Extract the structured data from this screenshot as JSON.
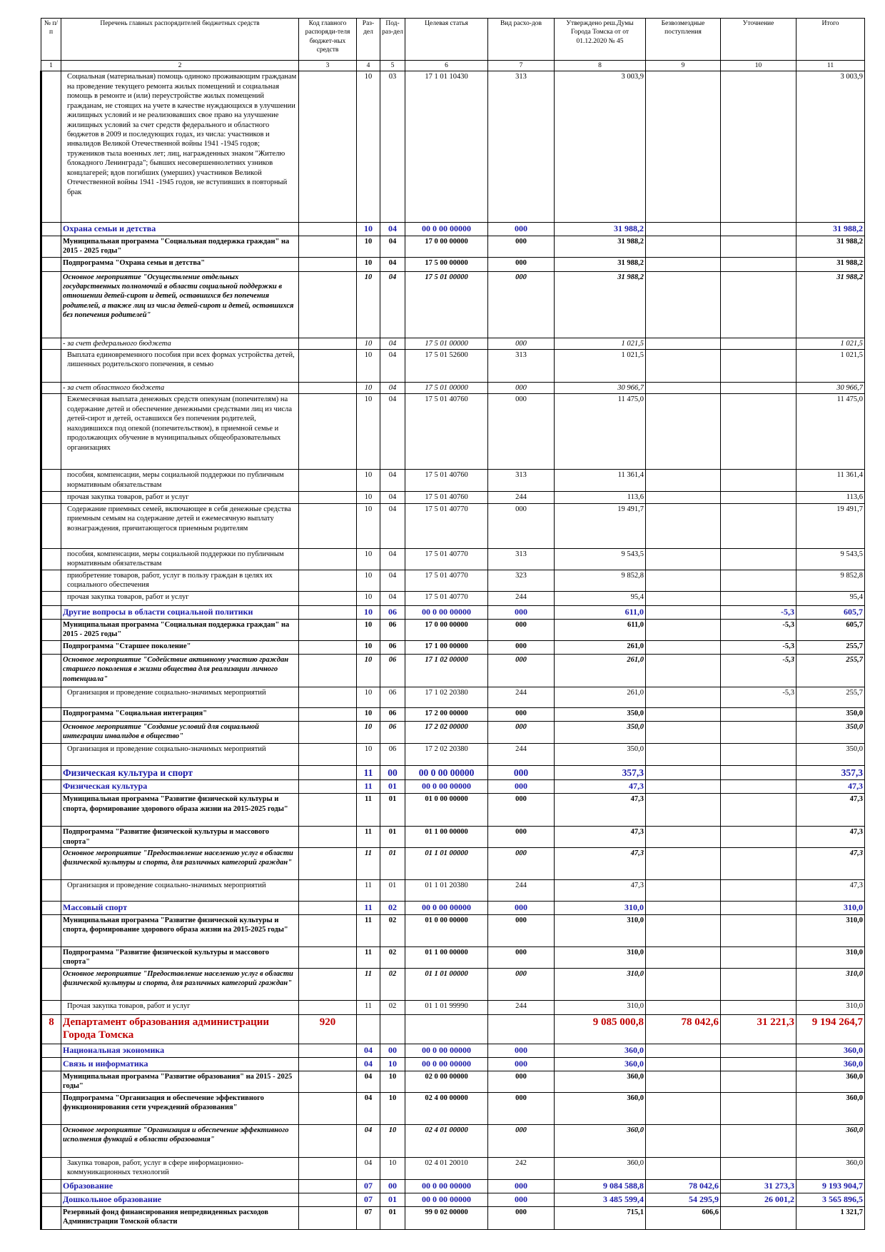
{
  "header": {
    "columns": [
      "№ п/п",
      "Перечень главных распорядителей бюджетных средств",
      "Код главного распоряди-теля бюджет-ных средств",
      "Раз-дел",
      "Под-раз-дел",
      "Целевая статья",
      "Вид расхо-дов",
      "Утверждено реш.Думы Города Томска от от 01.12.2020 № 45",
      "Безвозмездные поступления",
      "Уточнение",
      "Итого"
    ],
    "numbers": [
      1,
      2,
      3,
      4,
      5,
      6,
      7,
      8,
      9,
      10,
      11
    ]
  },
  "table": {
    "rows": [
      {
        "name": "Социальная (материальная) помощь одиноко проживающим гражданам на проведение текущего ремонта жилых помещений и социальная помощь в ремонте и (или) переустройстве жилых помещений гражданам, не стоящих на учете в качестве нуждающихся в улучшении жилищных условий и не реализовавших свое право на улучшение жилищных условий за счет средств федерального и областного бюджетов в 2009 и последующих годах, из числа: участников и инвалидов Великой Отечественной войны 1941 -1945 годов; тружеников тыла военных лет; лиц, награжденных знаком \"Жителю блокадного Ленинграда\"; бывших несовершеннолетних узников концлагерей; вдов погибших (умерших) участников Великой Отечественной войны 1941 -1945 годов, не вступивших в повторный брак",
        "sec": "10",
        "sub": "03",
        "target": "17 1 01 10430",
        "exp": "313",
        "approved": "3 003,9",
        "total": "3 003,9"
      },
      {
        "name": "Охрана семьи и детства",
        "sec": "10",
        "sub": "04",
        "target": "00 0 00 00000",
        "exp": "000",
        "approved": "31 988,2",
        "total": "31 988,2"
      },
      {
        "name": "Муниципальная программа \"Социальная поддержка граждан\" на 2015 - 2025 годы\"",
        "sec": "10",
        "sub": "04",
        "target": "17 0 00 00000",
        "exp": "000",
        "approved": "31 988,2",
        "total": "31 988,2"
      },
      {
        "name": "Подпрограмма \"Охрана семьи и детства\"",
        "sec": "10",
        "sub": "04",
        "target": "17 5 00 00000",
        "exp": "000",
        "approved": "31 988,2",
        "total": "31 988,2"
      },
      {
        "name": "Основное мероприятие \"Осуществление отдельных государственных полномочий в области социальной поддержки в отношении детей-сирот и детей, оставшихся без попечения родителей, а также лиц из числа детей-сирот и детей, оставшихся без попечения родителей\"",
        "sec": "10",
        "sub": "04",
        "target": "17 5 01 00000",
        "exp": "000",
        "approved": "31 988,2",
        "total": "31 988,2"
      },
      {
        "name": "- за счет федерального бюджета",
        "sec": "10",
        "sub": "04",
        "target": "17 5 01 00000",
        "exp": "000",
        "approved": "1 021,5",
        "total": "1 021,5"
      },
      {
        "name": "Выплата единовременного пособия при всех формах устройства детей, лишенных родительского попечения, в семью",
        "sec": "10",
        "sub": "04",
        "target": "17 5 01 52600",
        "exp": "313",
        "approved": "1 021,5",
        "total": "1 021,5"
      },
      {
        "name": "- за счет областного бюджета",
        "sec": "10",
        "sub": "04",
        "target": "17 5 01 00000",
        "exp": "000",
        "approved": "30 966,7",
        "total": "30 966,7"
      },
      {
        "name": "Ежемесячная выплата денежных средств опекунам (попечителям) на содержание детей и обеспечение денежными средствами лиц из числа детей-сирот и детей, оставшихся без попечения родителей, находившихся под опекой (попечительством), в приемной семье и продолжающих обучение в муниципальных общеобразовательных организациях",
        "sec": "10",
        "sub": "04",
        "target": "17 5 01 40760",
        "exp": "000",
        "approved": "11 475,0",
        "total": "11 475,0"
      },
      {
        "name": "пособия, компенсации, меры социальной поддержки по публичным нормативным обязательствам",
        "sec": "10",
        "sub": "04",
        "target": "17 5 01 40760",
        "exp": "313",
        "approved": "11 361,4",
        "total": "11 361,4"
      },
      {
        "name": "прочая закупка товаров, работ и услуг",
        "sec": "10",
        "sub": "04",
        "target": "17 5 01 40760",
        "exp": "244",
        "approved": "113,6",
        "total": "113,6"
      },
      {
        "name": "Содержание приемных семей, включающее в себя денежные средства приемным семьям на содержание детей и ежемесячную выплату вознаграждения, причитающегося приемным родителям",
        "sec": "10",
        "sub": "04",
        "target": "17 5 01 40770",
        "exp": "000",
        "approved": "19 491,7",
        "total": "19 491,7"
      },
      {
        "name": "пособия, компенсации, меры социальной поддержки по публичным нормативным обязательствам",
        "sec": "10",
        "sub": "04",
        "target": "17 5 01 40770",
        "exp": "313",
        "approved": "9 543,5",
        "total": "9 543,5"
      },
      {
        "name": "приобретение товаров, работ, услуг в пользу граждан в целях их социального обеспечения",
        "sec": "10",
        "sub": "04",
        "target": "17 5 01 40770",
        "exp": "323",
        "approved": "9 852,8",
        "total": "9 852,8"
      },
      {
        "name": "прочая закупка товаров, работ и услуг",
        "sec": "10",
        "sub": "04",
        "target": "17 5 01 40770",
        "exp": "244",
        "approved": "95,4",
        "total": "95,4"
      },
      {
        "name": "Другие вопросы в области социальной политики",
        "sec": "10",
        "sub": "06",
        "target": "00 0 00 00000",
        "exp": "000",
        "approved": "611,0",
        "adjust": "-5,3",
        "total": "605,7"
      },
      {
        "name": "Муниципальная программа \"Социальная поддержка граждан\" на 2015 - 2025 годы\"",
        "sec": "10",
        "sub": "06",
        "target": "17 0 00 00000",
        "exp": "000",
        "approved": "611,0",
        "adjust": "-5,3",
        "total": "605,7"
      },
      {
        "name": "Подпрограмма \"Старшее поколение\"",
        "sec": "10",
        "sub": "06",
        "target": "17 1 00 00000",
        "exp": "000",
        "approved": "261,0",
        "adjust": "-5,3",
        "total": "255,7"
      },
      {
        "name": "Основное мероприятие \"Содействие активному участию граждан старшего поколения в жизни общества для реализации личного потенциала\"",
        "sec": "10",
        "sub": "06",
        "target": "17 1 02 00000",
        "exp": "000",
        "approved": "261,0",
        "adjust": "-5,3",
        "total": "255,7"
      },
      {
        "name": "Организация и проведение социально-значимых мероприятий",
        "sec": "10",
        "sub": "06",
        "target": "17 1 02 20380",
        "exp": "244",
        "approved": "261,0",
        "adjust": "-5,3",
        "total": "255,7"
      },
      {
        "name": "Подпрограмма \"Социальная интеграция\"",
        "sec": "10",
        "sub": "06",
        "target": "17 2 00 00000",
        "exp": "000",
        "approved": "350,0",
        "total": "350,0"
      },
      {
        "name": "Основное мероприятие \"Создание условий для социальной интеграции инвалидов в общество\"",
        "sec": "10",
        "sub": "06",
        "target": "17 2 02 00000",
        "exp": "000",
        "approved": "350,0",
        "total": "350,0"
      },
      {
        "name": "Организация и проведение социально-значимых мероприятий",
        "sec": "10",
        "sub": "06",
        "target": "17 2 02 20380",
        "exp": "244",
        "approved": "350,0",
        "total": "350,0"
      },
      {
        "name": "Физическая культура и спорт",
        "sec": "11",
        "sub": "00",
        "target": "00 0 00 00000",
        "exp": "000",
        "approved": "357,3",
        "total": "357,3"
      },
      {
        "name": "Физическая культура",
        "sec": "11",
        "sub": "01",
        "target": "00 0 00 00000",
        "exp": "000",
        "approved": "47,3",
        "total": "47,3"
      },
      {
        "name": "Муниципальная программа \"Развитие физической культуры и спорта, формирование здорового образа жизни на 2015-2025 годы\"",
        "sec": "11",
        "sub": "01",
        "target": "01 0 00 00000",
        "exp": "000",
        "approved": "47,3",
        "total": "47,3"
      },
      {
        "name": "Подпрограмма \"Развитие физической культуры и массового спорта\"",
        "sec": "11",
        "sub": "01",
        "target": "01 1 00 00000",
        "exp": "000",
        "approved": "47,3",
        "total": "47,3"
      },
      {
        "name": "Основное мероприятие \"Предоставление населению услуг в области физической культуры и спорта, для различных категорий граждан\"",
        "sec": "11",
        "sub": "01",
        "target": "01 1 01 00000",
        "exp": "000",
        "approved": "47,3",
        "total": "47,3"
      },
      {
        "name": "Организация и проведение социально-значимых мероприятий",
        "sec": "11",
        "sub": "01",
        "target": "01 1 01 20380",
        "exp": "244",
        "approved": "47,3",
        "total": "47,3"
      },
      {
        "name": "Массовый спорт",
        "sec": "11",
        "sub": "02",
        "target": "00 0 00 00000",
        "exp": "000",
        "approved": "310,0",
        "total": "310,0"
      },
      {
        "name": "Муниципальная программа \"Развитие физической культуры и спорта, формирование здорового образа жизни на 2015-2025 годы\"",
        "sec": "11",
        "sub": "02",
        "target": "01 0 00 00000",
        "exp": "000",
        "approved": "310,0",
        "total": "310,0"
      },
      {
        "name": "Подпрограмма \"Развитие физической культуры и массового спорта\"",
        "sec": "11",
        "sub": "02",
        "target": "01 1 00 00000",
        "exp": "000",
        "approved": "310,0",
        "total": "310,0"
      },
      {
        "name": "Основное мероприятие \"Предоставление населению услуг в области физической культуры и спорта, для различных категорий граждан\"",
        "sec": "11",
        "sub": "02",
        "target": "01 1 01 00000",
        "exp": "000",
        "approved": "310,0",
        "total": "310,0"
      },
      {
        "name": "Прочая закупка товаров, работ и услуг",
        "sec": "11",
        "sub": "02",
        "target": "01 1 01 99990",
        "exp": "244",
        "approved": "310,0",
        "total": "310,0"
      },
      {
        "no": "8",
        "name": "Департамент образования администрации Города Томска",
        "code": "920",
        "approved": "9 085 000,8",
        "grants": "78 042,6",
        "adjust": "31 221,3",
        "total": "9 194 264,7"
      },
      {
        "name": "Национальная экономика",
        "sec": "04",
        "sub": "00",
        "target": "00 0 00 00000",
        "exp": "000",
        "approved": "360,0",
        "total": "360,0"
      },
      {
        "name": "Связь и информатика",
        "sec": "04",
        "sub": "10",
        "target": "00 0 00 00000",
        "exp": "000",
        "approved": "360,0",
        "total": "360,0"
      },
      {
        "name": "Муниципальная программа \"Развитие образования\" на 2015 - 2025 годы\"",
        "sec": "04",
        "sub": "10",
        "target": "02 0 00 00000",
        "exp": "000",
        "approved": "360,0",
        "total": "360,0"
      },
      {
        "name": "Подпрограмма \"Организация и обеспечение эффективного функционирования сети учреждений образования\"",
        "sec": "04",
        "sub": "10",
        "target": "02 4 00 00000",
        "exp": "000",
        "approved": "360,0",
        "total": "360,0"
      },
      {
        "name": "Основное мероприятие \"Организация и обеспечение эффективного исполнения функций в области образования\"",
        "sec": "04",
        "sub": "10",
        "target": "02 4 01 00000",
        "exp": "000",
        "approved": "360,0",
        "total": "360,0"
      },
      {
        "name": "Закупка товаров, работ, услуг в сфере информационно-коммуникационных технологий",
        "sec": "04",
        "sub": "10",
        "target": "02 4 01 20010",
        "exp": "242",
        "approved": "360,0",
        "total": "360,0"
      },
      {
        "name": "Образование",
        "sec": "07",
        "sub": "00",
        "target": "00 0 00 00000",
        "exp": "000",
        "approved": "9 084 588,8",
        "grants": "78 042,6",
        "adjust": "31 273,3",
        "total": "9 193 904,7"
      },
      {
        "name": "Дошкольное образование",
        "sec": "07",
        "sub": "01",
        "target": "00 0 00 00000",
        "exp": "000",
        "approved": "3 485 599,4",
        "grants": "54 295,9",
        "adjust": "26 001,2",
        "total": "3 565 896,5"
      },
      {
        "name": "Резервный фонд финансирования непредвиденных расходов Администрации Томской области",
        "sec": "07",
        "sub": "01",
        "target": "99 0 02 00000",
        "exp": "000",
        "approved": "715,1",
        "grants": "606,6",
        "total": "1 321,7"
      }
    ]
  }
}
